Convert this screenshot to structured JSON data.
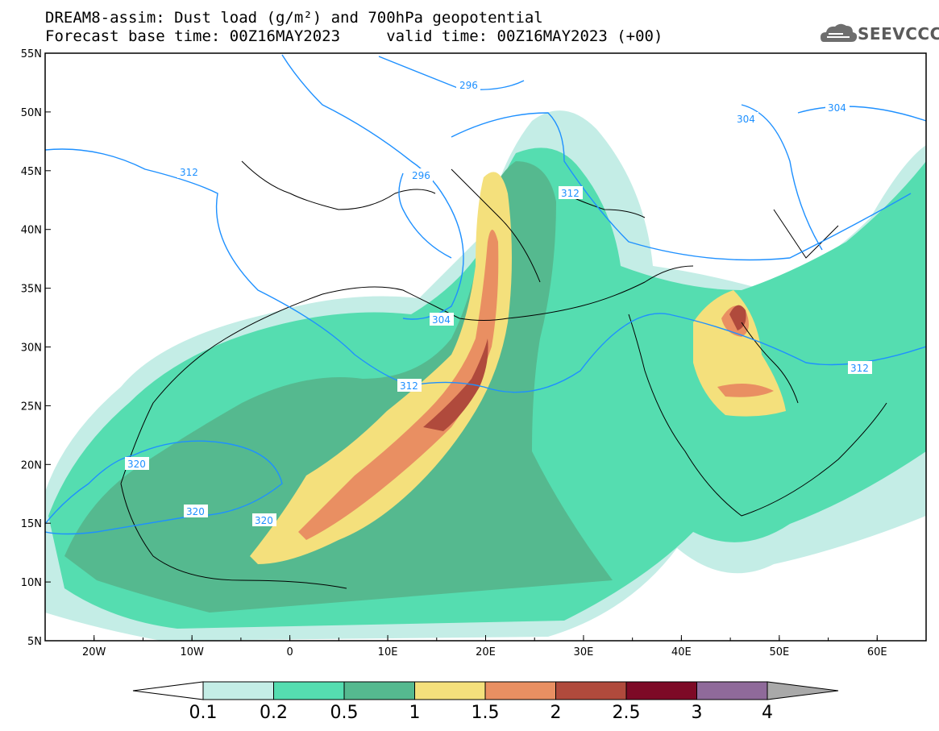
{
  "title_line1": "DREAM8-assim: Dust load (g/m²) and 700hPa geopotential",
  "title_line2": "Forecast base time: 00Z16MAY2023     valid time: 00Z16MAY2023 (+00)",
  "logo": {
    "icon": "cloud-icon",
    "text": "SEEVCCC"
  },
  "map": {
    "lon_range": [
      -25,
      65
    ],
    "lat_range": [
      5,
      55
    ],
    "lat_ticks": [
      "5N",
      "10N",
      "15N",
      "20N",
      "25N",
      "30N",
      "35N",
      "40N",
      "45N",
      "50N",
      "55N"
    ],
    "lon_ticks": [
      "20W",
      "10W",
      "0",
      "10E",
      "20E",
      "30E",
      "40E",
      "50E",
      "60E"
    ],
    "contour_labels": [
      "296",
      "296",
      "304",
      "304",
      "304",
      "312",
      "312",
      "312",
      "312",
      "320",
      "320",
      "320"
    ]
  },
  "colorbar": {
    "colors": [
      "#c4ede6",
      "#55ddb0",
      "#55b98f",
      "#f4e07c",
      "#e98f62",
      "#b04a3c",
      "#7d0a26",
      "#8f6a9a"
    ],
    "under_color": "#ffffff",
    "over_color": "#a9a9a9",
    "labels": [
      "0.1",
      "0.2",
      "0.5",
      "1",
      "1.5",
      "2",
      "2.5",
      "3",
      "4"
    ]
  }
}
